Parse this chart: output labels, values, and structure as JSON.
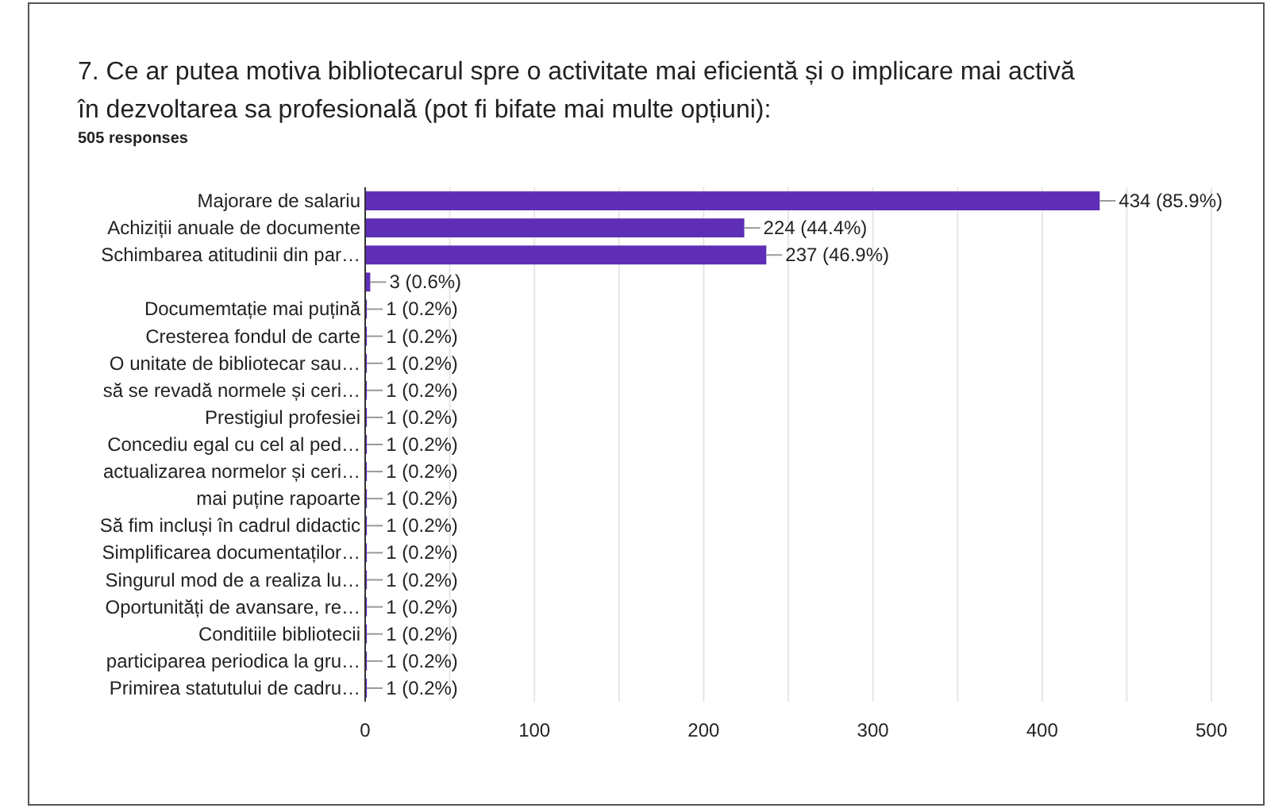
{
  "chart_data": {
    "type": "bar",
    "orientation": "horizontal",
    "title": "7. Ce ar putea motiva bibliotecarul spre o activitate mai eficientă și o implicare mai activă în dezvoltarea sa profesională (pot fi bifate mai multe opțiuni):",
    "subtitle": "505 responses",
    "categories": [
      "Majorare de salariu",
      "Achiziții anuale de documente",
      "Schimbarea atitudinii din par…",
      null,
      "Documemtație mai puțină",
      "Cresterea fondul de carte",
      "O unitate de bibliotecar sau…",
      "să se revadă normele și ceri…",
      "Prestigiul profesiei",
      "Concediu egal cu cel al ped…",
      "actualizarea normelor și ceri…",
      "mai puține rapoarte",
      "Să fim incluși în cadrul didactic",
      "Simplificarea documentaților…",
      "Singurul mod de a realiza lu…",
      "Oportunități de avansare, re…",
      "Conditiile bibliotecii",
      "participarea periodica la gru…",
      "Primirea statutului de cadru…"
    ],
    "values": [
      434,
      224,
      237,
      3,
      1,
      1,
      1,
      1,
      1,
      1,
      1,
      1,
      1,
      1,
      1,
      1,
      1,
      1,
      1
    ],
    "value_labels": [
      "434 (85.9%)",
      "224 (44.4%)",
      "237 (46.9%)",
      "3 (0.6%)",
      "1 (0.2%)",
      "1 (0.2%)",
      "1 (0.2%)",
      "1 (0.2%)",
      "1 (0.2%)",
      "1 (0.2%)",
      "1 (0.2%)",
      "1 (0.2%)",
      "1 (0.2%)",
      "1 (0.2%)",
      "1 (0.2%)",
      "1 (0.2%)",
      "1 (0.2%)",
      "1 (0.2%)",
      "1 (0.2%)"
    ],
    "color": "#5e2eb7",
    "xlim": [
      0,
      500
    ],
    "xticks": [
      0,
      {
        "value": 50,
        "label": null
      },
      100,
      {
        "value": 150,
        "label": null
      },
      200,
      {
        "value": 250,
        "label": null
      },
      300,
      {
        "value": 350,
        "label": null
      },
      400,
      {
        "value": 450,
        "label": null
      },
      500
    ],
    "grid": "x"
  }
}
